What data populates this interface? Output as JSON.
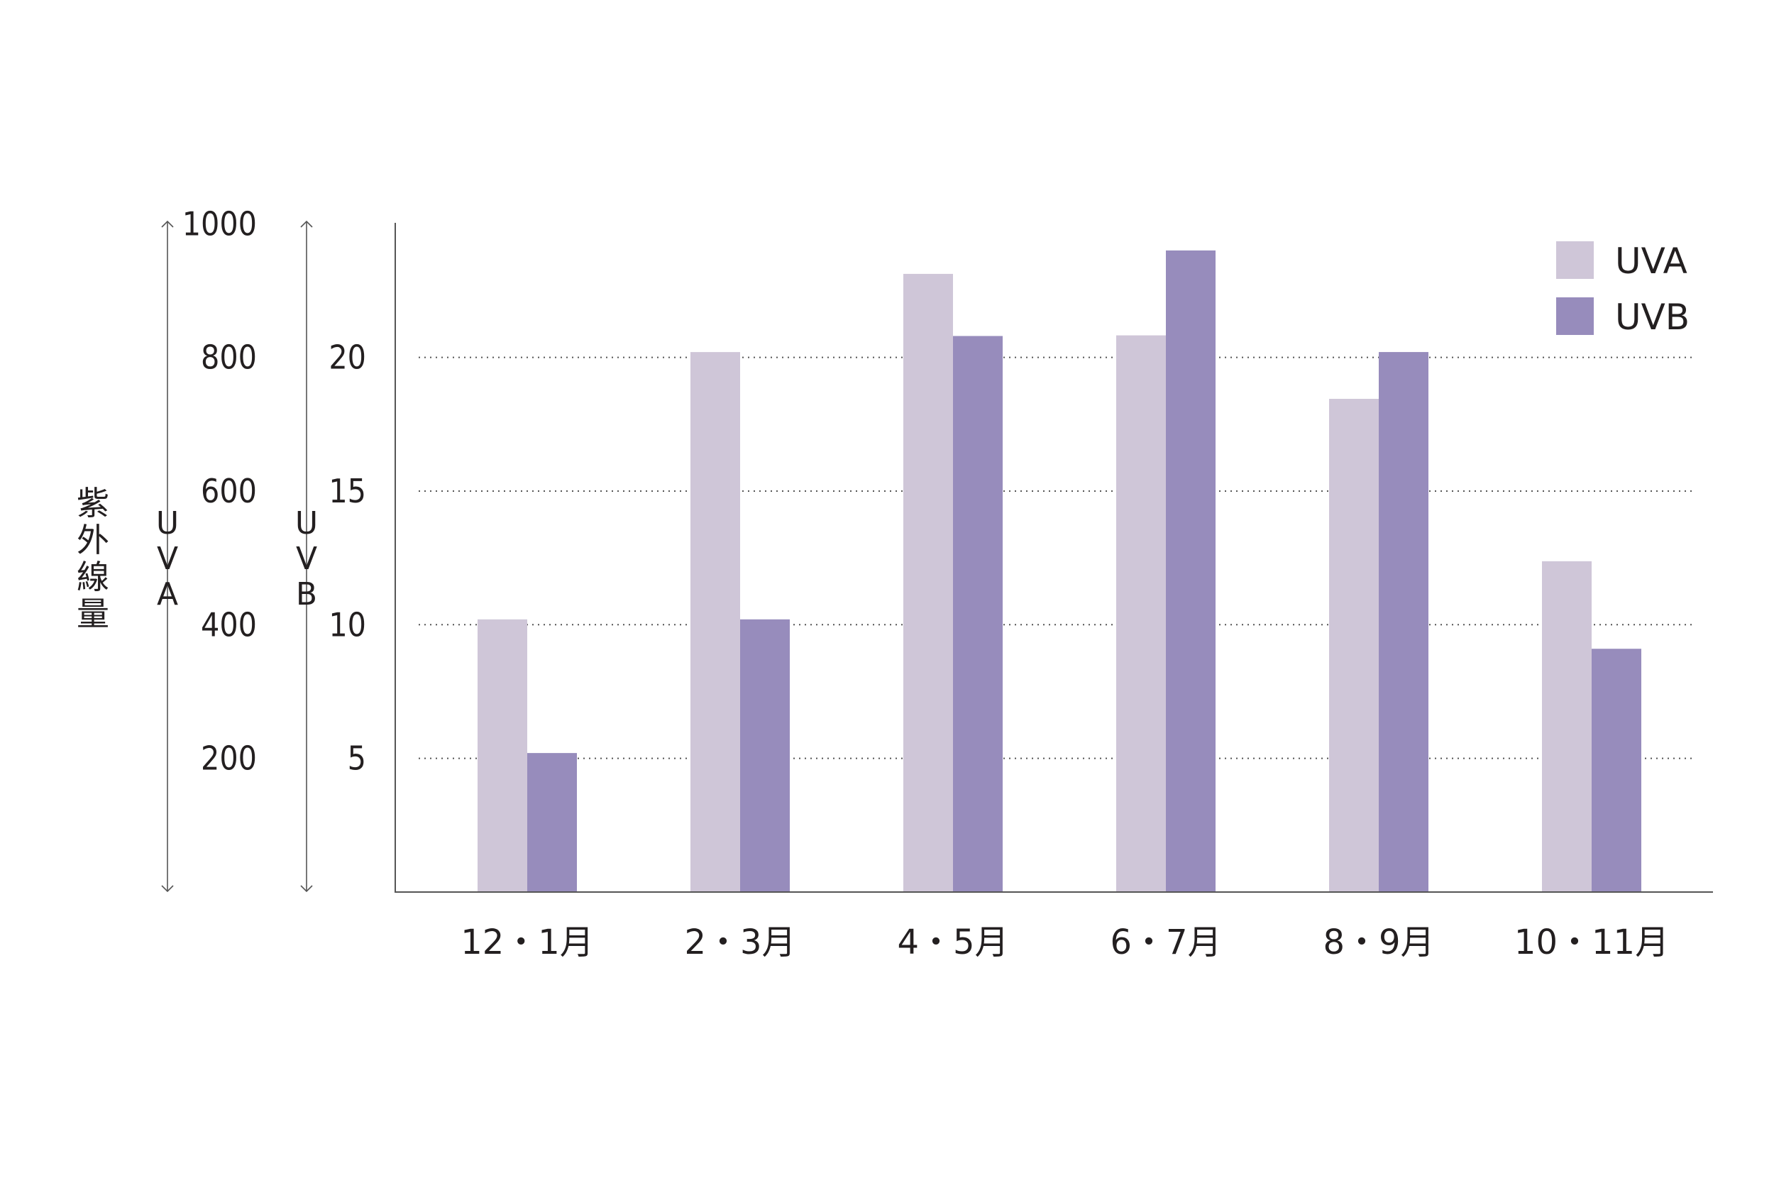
{
  "chart_data": {
    "type": "bar",
    "categories": [
      "12・1月",
      "2・3月",
      "4・5月",
      "6・7月",
      "8・9月",
      "10・11月"
    ],
    "series": [
      {
        "name": "UVA",
        "values": [
          408,
          808,
          925,
          833,
          738,
          495
        ]
      },
      {
        "name": "UVB",
        "values": [
          5.2,
          10.2,
          20.8,
          24.0,
          20.2,
          9.1
        ]
      }
    ],
    "ylabel": "紫外線量",
    "y_axes": [
      {
        "label": "UVA",
        "ylim": [
          0,
          1000
        ],
        "ticks": [
          "200",
          "400",
          "600",
          "800",
          "1000"
        ]
      },
      {
        "label": "UVB",
        "ylim": [
          0,
          25
        ],
        "ticks": [
          "5",
          "10",
          "15",
          "20"
        ]
      }
    ],
    "grid": "dotted horizontal",
    "legend": "top-right",
    "colors": {
      "UVA": "#cfc6d8",
      "UVB": "#978cbc"
    }
  }
}
